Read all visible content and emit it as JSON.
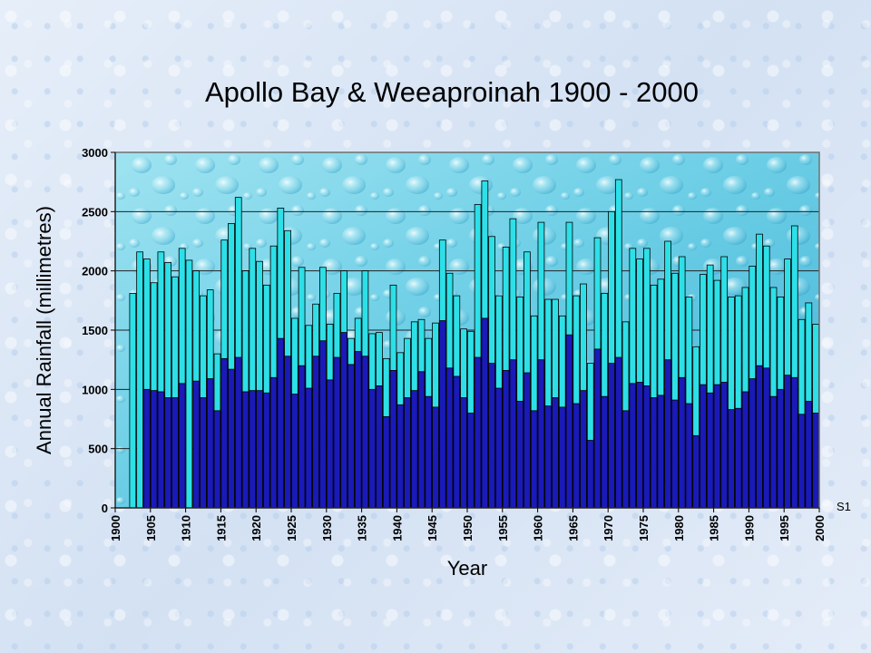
{
  "chart_data": {
    "type": "bar",
    "title": "Apollo Bay & Weeaproinah 1900 - 2000",
    "xlabel": "Year",
    "ylabel": "Annual Rainfall (millimetres)",
    "ylim": [
      0,
      3000
    ],
    "yticks": [
      "0",
      "500",
      "1000",
      "1500",
      "2000",
      "2500",
      "3000"
    ],
    "xlim": [
      1900,
      2000
    ],
    "xticks": [
      "1900",
      "1905",
      "1910",
      "1915",
      "1920",
      "1925",
      "1930",
      "1935",
      "1940",
      "1945",
      "1950",
      "1955",
      "1960",
      "1965",
      "1970",
      "1975",
      "1980",
      "1985",
      "1990",
      "1995",
      "2000"
    ],
    "grid": "horizontal",
    "plot_background": "water droplets",
    "years": [
      1900,
      1901,
      1902,
      1903,
      1904,
      1905,
      1906,
      1907,
      1908,
      1909,
      1910,
      1911,
      1912,
      1913,
      1914,
      1915,
      1916,
      1917,
      1918,
      1919,
      1920,
      1921,
      1922,
      1923,
      1924,
      1925,
      1926,
      1927,
      1928,
      1929,
      1930,
      1931,
      1932,
      1933,
      1934,
      1935,
      1936,
      1937,
      1938,
      1939,
      1940,
      1941,
      1942,
      1943,
      1944,
      1945,
      1946,
      1947,
      1948,
      1949,
      1950,
      1951,
      1952,
      1953,
      1954,
      1955,
      1956,
      1957,
      1958,
      1959,
      1960,
      1961,
      1962,
      1963,
      1964,
      1965,
      1966,
      1967,
      1968,
      1969,
      1970,
      1971,
      1972,
      1973,
      1974,
      1975,
      1976,
      1977,
      1978,
      1979,
      1980,
      1981,
      1982,
      1983,
      1984,
      1985,
      1986,
      1987,
      1988,
      1989,
      1990,
      1991,
      1992,
      1993,
      1994,
      1995,
      1996,
      1997,
      1998,
      1999,
      2000
    ],
    "series": [
      {
        "color": "#2de0e8",
        "values": [
          null,
          null,
          1810,
          2160,
          2100,
          1900,
          2160,
          2070,
          1950,
          2190,
          2090,
          2000,
          1790,
          1840,
          1300,
          2260,
          2400,
          2620,
          2000,
          2190,
          2080,
          1880,
          2210,
          2530,
          2340,
          1600,
          2030,
          1540,
          1720,
          2030,
          1550,
          1810,
          2000,
          1430,
          1600,
          2000,
          1470,
          1480,
          1260,
          1880,
          1310,
          1430,
          1570,
          1590,
          1430,
          1560,
          2260,
          1980,
          1790,
          1510,
          1490,
          2560,
          2760,
          2290,
          1790,
          2200,
          2440,
          1780,
          2160,
          1620,
          2410,
          1760,
          1760,
          1620,
          2410,
          1790,
          1890,
          1220,
          2280,
          1810,
          2500,
          2770,
          1570,
          2190,
          2100,
          2190,
          1880,
          1930,
          2250,
          1980,
          2120,
          1780,
          1360,
          1970,
          2050,
          1920,
          2120,
          1780,
          1790,
          1860,
          2040,
          2310,
          2210,
          1860,
          1780,
          2100,
          2380,
          1590,
          1730,
          1550,
          null
        ]
      },
      {
        "color": "#1a1ab8",
        "values": [
          null,
          null,
          null,
          null,
          1000,
          990,
          980,
          930,
          930,
          1050,
          null,
          1070,
          930,
          1090,
          820,
          1260,
          1170,
          1270,
          980,
          990,
          990,
          970,
          1100,
          1430,
          1280,
          960,
          1200,
          1010,
          1280,
          1410,
          1080,
          1270,
          1480,
          1210,
          1320,
          1280,
          1000,
          1030,
          770,
          1160,
          870,
          930,
          990,
          1150,
          940,
          850,
          1580,
          1180,
          1110,
          930,
          800,
          1270,
          1600,
          1220,
          1010,
          1160,
          1250,
          900,
          1140,
          820,
          1250,
          860,
          930,
          850,
          1460,
          880,
          990,
          570,
          1340,
          940,
          1220,
          1270,
          820,
          1050,
          1060,
          1030,
          930,
          950,
          1250,
          910,
          1100,
          880,
          610,
          1040,
          970,
          1040,
          1060,
          830,
          840,
          980,
          1090,
          1200,
          1180,
          940,
          1000,
          1120,
          1100,
          790,
          900,
          800,
          null
        ]
      }
    ],
    "series_label": "S1"
  }
}
